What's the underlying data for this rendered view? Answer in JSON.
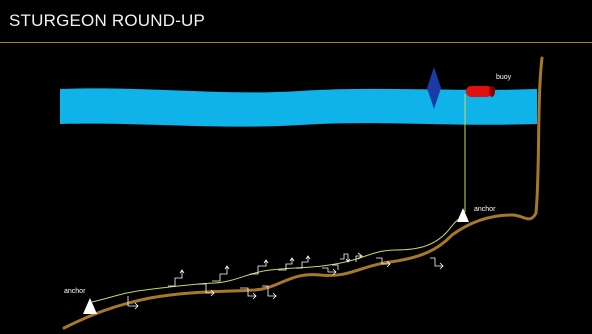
{
  "header": {
    "title": "STURGEON ROUND-UP"
  },
  "diagram": {
    "labels": {
      "buoy": "buoy",
      "anchor_right": "anchor",
      "anchor_left": "anchor"
    },
    "colors": {
      "water": "#10b2ea",
      "seabed": "#a8782a",
      "line": "#c8d860",
      "buoy": "#e01010",
      "marker": "#1a3aa8",
      "anchor": "#ffffff",
      "hook": "#ffffff",
      "title_rule": "#b07a3a"
    },
    "icons": {
      "buoy": "buoy-icon",
      "marker": "diamond-marker-icon",
      "anchor": "anchor-triangle-icon",
      "hook": "hook-icon"
    }
  }
}
